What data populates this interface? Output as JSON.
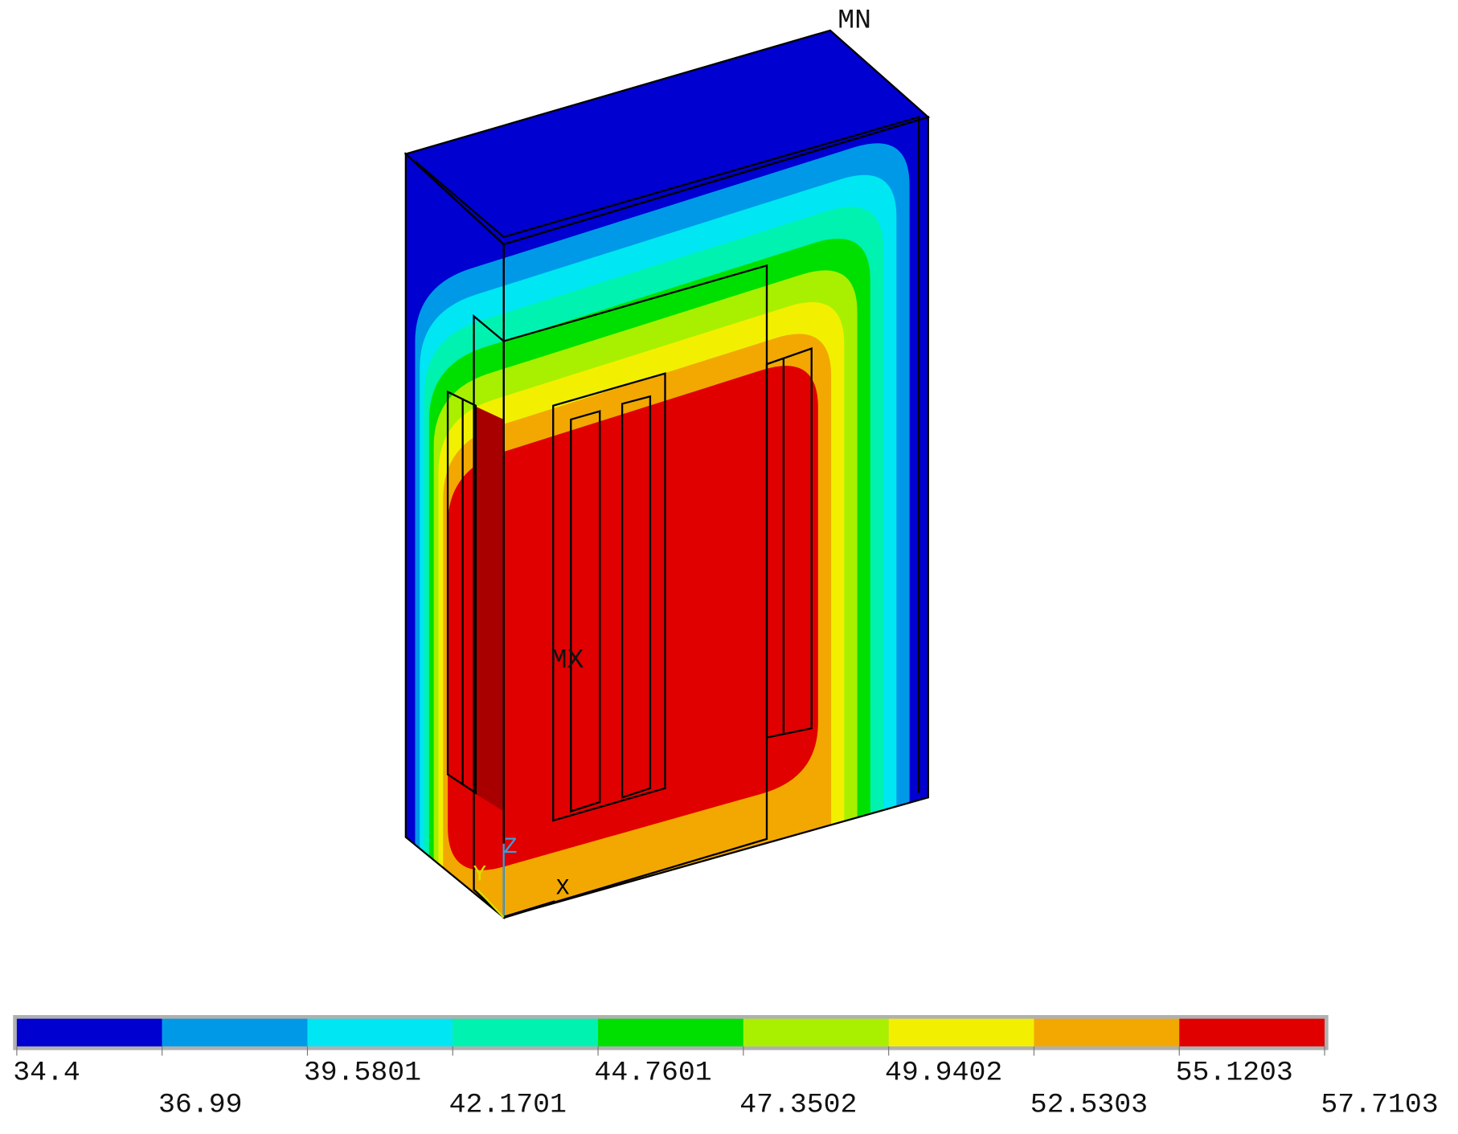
{
  "legend": {
    "levels": [
      34.4,
      36.99,
      39.5801,
      42.1701,
      44.7601,
      47.3502,
      49.9402,
      52.5303,
      55.1203,
      57.7103
    ],
    "colors": [
      "#0000d0",
      "#0099e8",
      "#00e6f2",
      "#00f2b0",
      "#00e000",
      "#a8f000",
      "#f2f000",
      "#f2a800",
      "#e00000"
    ]
  },
  "labels": {
    "min": "MN",
    "max": "MX",
    "x": "X",
    "y": "Y",
    "z": "Z"
  }
}
